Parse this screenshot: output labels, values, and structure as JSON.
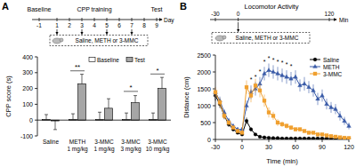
{
  "chart_data": [
    {
      "type": "bar",
      "y_label": "CPP score (s)",
      "categories": [
        "Saline",
        "METH\n1 mg/kg",
        "3-MMC\n1 mg/kg",
        "3-MMC\n3 mg/kg",
        "3-MMC\n10 mg/kg"
      ],
      "series": [
        {
          "name": "Baseline",
          "color": "#ffffff",
          "values": [
            5,
            5,
            5,
            5,
            5
          ],
          "errors": [
            30,
            35,
            45,
            40,
            40
          ]
        },
        {
          "name": "Test",
          "color": "#a6a6a6",
          "values": [
            -5,
            230,
            75,
            110,
            200
          ],
          "errors": [
            55,
            60,
            60,
            45,
            70
          ]
        }
      ],
      "ylim": [
        -100,
        400
      ],
      "yticks": [
        -100,
        0,
        100,
        200,
        300,
        400
      ],
      "annotations": [
        {
          "text": "**",
          "x": 1,
          "y": 320
        },
        {
          "text": "*",
          "x": 3,
          "y": 190
        },
        {
          "text": "*",
          "x": 4,
          "y": 300
        }
      ]
    },
    {
      "type": "line",
      "x_label": "Time (min)",
      "y_label": "Distance (cm)",
      "x": [
        -30,
        -25,
        -20,
        -15,
        -10,
        -5,
        0,
        5,
        10,
        15,
        20,
        25,
        30,
        35,
        40,
        45,
        50,
        55,
        60,
        65,
        70,
        75,
        80,
        85,
        90,
        95,
        100,
        105,
        110,
        115,
        120
      ],
      "series": [
        {
          "name": "Saline",
          "color": "#000000",
          "marker": "circle",
          "values": [
            1300,
            1050,
            700,
            450,
            300,
            200,
            150,
            550,
            300,
            150,
            80,
            60,
            50,
            40,
            40,
            30,
            30,
            30,
            30,
            30,
            30,
            30,
            30,
            30,
            30,
            30,
            30,
            30,
            30,
            30,
            30
          ],
          "errors": [
            150,
            120,
            100,
            80,
            60,
            40,
            30,
            100,
            60,
            30,
            20,
            15,
            10,
            10,
            10,
            10,
            10,
            10,
            10,
            10,
            10,
            10,
            10,
            10,
            10,
            10,
            10,
            10,
            10,
            10,
            10
          ]
        },
        {
          "name": "METH",
          "color": "#3a5ba8",
          "marker": "triangle",
          "values": [
            1400,
            1150,
            800,
            550,
            400,
            300,
            300,
            1000,
            1400,
            1500,
            1650,
            1950,
            2050,
            2000,
            1950,
            1900,
            1850,
            1800,
            1850,
            1600,
            1650,
            1550,
            1450,
            1200,
            1300,
            1050,
            950,
            900,
            700,
            550,
            400
          ],
          "errors": [
            150,
            120,
            100,
            80,
            60,
            50,
            50,
            150,
            200,
            200,
            200,
            200,
            200,
            200,
            200,
            200,
            200,
            200,
            200,
            180,
            200,
            180,
            180,
            180,
            180,
            160,
            160,
            150,
            140,
            120,
            100
          ]
        },
        {
          "name": "3-MMC",
          "color": "#f0a030",
          "marker": "square",
          "values": [
            1400,
            1100,
            700,
            500,
            350,
            250,
            200,
            1550,
            1300,
            1600,
            1450,
            1150,
            800,
            700,
            500,
            450,
            400,
            350,
            300,
            300,
            250,
            200,
            200,
            150,
            150,
            120,
            100,
            80,
            60,
            50,
            40
          ],
          "errors": [
            150,
            120,
            100,
            80,
            60,
            50,
            40,
            200,
            200,
            200,
            200,
            180,
            150,
            120,
            100,
            80,
            80,
            70,
            60,
            60,
            50,
            50,
            40,
            40,
            30,
            30,
            30,
            20,
            20,
            20,
            20
          ]
        }
      ],
      "xlim": [
        -30,
        120
      ],
      "xticks": [
        -30,
        0,
        30,
        60,
        90,
        120
      ],
      "ylim": [
        0,
        2500
      ],
      "yticks": [
        0,
        500,
        1000,
        1500,
        2000,
        2500
      ],
      "annotations": [
        {
          "text": "*",
          "x": 10,
          "y": 1700
        },
        {
          "text": "*",
          "x": 15,
          "y": 1800
        },
        {
          "text": "*",
          "x": 20,
          "y": 1950
        },
        {
          "text": "*",
          "x": 25,
          "y": 2250
        },
        {
          "text": "*",
          "x": 30,
          "y": 2350
        },
        {
          "text": "*",
          "x": 35,
          "y": 2300
        },
        {
          "text": "*",
          "x": 40,
          "y": 2250
        },
        {
          "text": "*",
          "x": 45,
          "y": 2200
        },
        {
          "text": "*",
          "x": 50,
          "y": 2150
        },
        {
          "text": "*",
          "x": 55,
          "y": 2100
        }
      ]
    }
  ],
  "diagrams": [
    {
      "panel": "A",
      "labels": [
        {
          "text": "Baseline",
          "from": -1,
          "to": -1
        },
        {
          "text": "CPP training",
          "from": 1,
          "to": 7
        },
        {
          "text": "Test",
          "from": 9,
          "to": 9
        }
      ],
      "days": [
        -1,
        1,
        2,
        3,
        4,
        5,
        6,
        7,
        8,
        9
      ],
      "unit": "Day",
      "injection_days": [
        1,
        3,
        5,
        7
      ],
      "treatment": "Saline, METH or 3-MMC"
    },
    {
      "panel": "B",
      "title": "Locomotor Activity",
      "ticks": [
        -30,
        0,
        120
      ],
      "unit": "Min",
      "injection_time": 0,
      "treatment": "Saline, METH or 3-MMC"
    }
  ]
}
